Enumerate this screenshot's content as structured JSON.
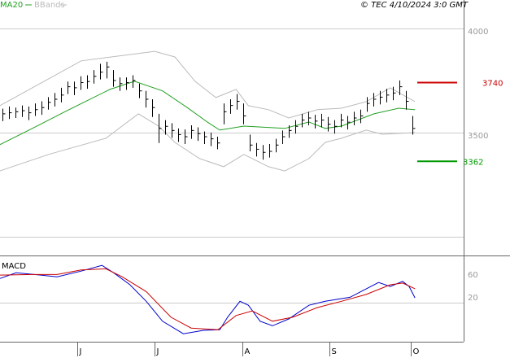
{
  "chart_data": [
    {
      "type": "ohlc",
      "annotation": "© TEC 4/10/2024 3:0 GMT",
      "xlim": [
        -0.375,
        70.875
      ],
      "ylim": [
        2914,
        4066
      ],
      "yticks": [
        3500,
        4000
      ],
      "gridlines": [
        3000,
        3500,
        4000
      ],
      "bar_color": "#000000",
      "close": [
        3590,
        3595,
        3600,
        3605,
        3595,
        3610,
        3620,
        3645,
        3660,
        3680,
        3720,
        3715,
        3740,
        3745,
        3770,
        3790,
        3815,
        3750,
        3735,
        3740,
        3750,
        3700,
        3660,
        3620,
        3520,
        3530,
        3510,
        3490,
        3480,
        3510,
        3495,
        3480,
        3470,
        3450,
        3600,
        3630,
        3650,
        3580,
        3440,
        3420,
        3405,
        3410,
        3440,
        3480,
        3510,
        3530,
        3560,
        3570,
        3555,
        3560,
        3540,
        3530,
        3560,
        3550,
        3570,
        3580,
        3640,
        3660,
        3670,
        3680,
        3690,
        3720,
        3650,
        3520
      ],
      "high": [
        3615,
        3625,
        3620,
        3630,
        3625,
        3640,
        3650,
        3670,
        3690,
        3715,
        3745,
        3745,
        3770,
        3775,
        3800,
        3830,
        3840,
        3800,
        3765,
        3765,
        3775,
        3735,
        3700,
        3660,
        3590,
        3560,
        3545,
        3520,
        3515,
        3535,
        3525,
        3505,
        3500,
        3480,
        3640,
        3660,
        3685,
        3640,
        3490,
        3450,
        3440,
        3445,
        3470,
        3510,
        3535,
        3560,
        3590,
        3600,
        3585,
        3590,
        3575,
        3560,
        3590,
        3580,
        3600,
        3610,
        3670,
        3690,
        3700,
        3710,
        3720,
        3750,
        3700,
        3580
      ],
      "low": [
        3555,
        3565,
        3570,
        3575,
        3560,
        3580,
        3585,
        3610,
        3625,
        3645,
        3685,
        3680,
        3705,
        3710,
        3735,
        3755,
        3760,
        3720,
        3700,
        3705,
        3715,
        3665,
        3620,
        3575,
        3450,
        3490,
        3475,
        3455,
        3445,
        3470,
        3460,
        3445,
        3435,
        3420,
        3540,
        3590,
        3610,
        3540,
        3410,
        3385,
        3370,
        3380,
        3405,
        3445,
        3475,
        3495,
        3525,
        3535,
        3520,
        3525,
        3505,
        3495,
        3525,
        3515,
        3535,
        3545,
        3600,
        3625,
        3635,
        3645,
        3655,
        3680,
        3610,
        3490
      ],
      "ma": {
        "name": "MA20",
        "color": "#22a022",
        "x": [
          -0.4,
          4.6,
          9.6,
          16.5,
          20.3,
          24.6,
          28.4,
          31.5,
          33.4,
          37.1,
          43.4,
          47.1,
          49.6,
          52.1,
          57.1,
          60.9,
          63.4
        ],
        "values": [
          3442,
          3520,
          3600,
          3707,
          3746,
          3700,
          3620,
          3550,
          3512,
          3531,
          3520,
          3551,
          3520,
          3531,
          3590,
          3617,
          3610
        ]
      },
      "bbands": {
        "name": "BBands",
        "color": "#bbbbbb",
        "bands": [
          {
            "x": [
              -0.4,
              12.1,
              23.4,
              26.5,
              29.6,
              32.8,
              35.9,
              37.8,
              40.9,
              44,
              48.4,
              52.1,
              55.9,
              59.6,
              63.4
            ],
            "values": [
              3629,
              3844,
              3890,
              3863,
              3746,
              3668,
              3707,
              3629,
              3610,
              3570,
              3610,
              3617,
              3648,
              3715,
              3648
            ]
          },
          {
            "x": [
              -0.4,
              7.1,
              15.9,
              20.9,
              24,
              26.5,
              30.3,
              34,
              37.1,
              40.9,
              43.4,
              47.1,
              49.6,
              52.1,
              55.9,
              58.4,
              63.4
            ],
            "values": [
              3316,
              3395,
              3473,
              3590,
              3531,
              3453,
              3375,
              3336,
              3395,
              3336,
              3316,
              3375,
              3453,
              3473,
              3512,
              3492,
              3500
            ]
          }
        ]
      },
      "levels": [
        {
          "value": 3740,
          "color": "#cc0000"
        },
        {
          "value": 3362,
          "color": "#009900"
        }
      ]
    },
    {
      "type": "line",
      "title": "MACD",
      "xlim": [
        -0.375,
        70.875
      ],
      "ylim": [
        -57,
        93
      ],
      "yticks": [
        20,
        60
      ],
      "xticks": [
        {
          "value": 11.5,
          "label": "J"
        },
        {
          "value": 23.4,
          "label": "J"
        },
        {
          "value": 36.9,
          "label": "A"
        },
        {
          "value": 50.3,
          "label": "S"
        },
        {
          "value": 62.8,
          "label": "O"
        }
      ],
      "series": [
        {
          "color": "#0000cc",
          "x": [
            -0.4,
            2.1,
            5.9,
            8.4,
            12.1,
            15.3,
            17.1,
            19.6,
            22.1,
            24.6,
            27.8,
            30.9,
            33.4,
            34.6,
            36.5,
            37.8,
            39.6,
            41.5,
            44,
            47.1,
            49.6,
            53.4,
            57.8,
            59.6,
            61.5,
            62.5,
            63.4
          ],
          "values": [
            54,
            64,
            60,
            57,
            67,
            77,
            64,
            43,
            14,
            -21,
            -43,
            -37,
            -36,
            -14,
            14,
            7,
            -21,
            -29,
            -17,
            7,
            14,
            21,
            47,
            40,
            49,
            40,
            20
          ]
        },
        {
          "color": "#cc0000",
          "x": [
            -0.4,
            4.6,
            8.4,
            12.1,
            15.9,
            18.4,
            22.1,
            25.9,
            29,
            33.1,
            35.9,
            38.4,
            41.5,
            44.6,
            48.4,
            52.1,
            55.9,
            59.6,
            61.5,
            63.4
          ],
          "values": [
            60,
            61,
            61,
            69,
            71,
            57,
            31,
            -14,
            -33,
            -36,
            -11,
            -3,
            -21,
            -14,
            3,
            14,
            26,
            43,
            46,
            36
          ]
        }
      ]
    }
  ]
}
